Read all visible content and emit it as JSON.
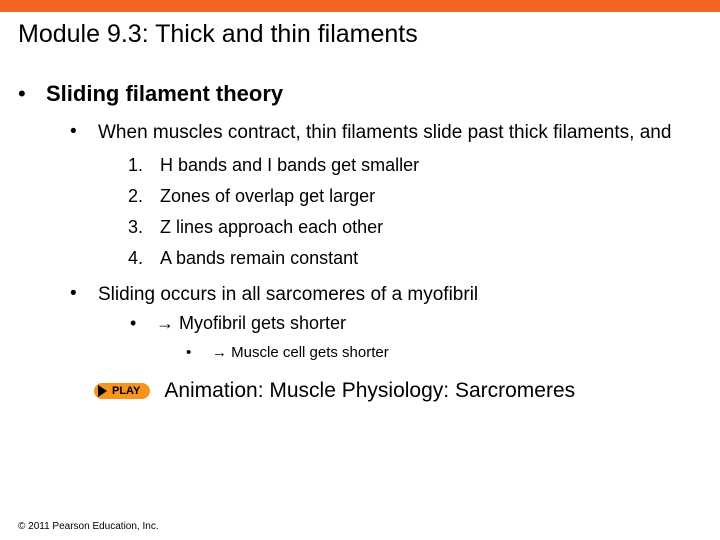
{
  "colors": {
    "accent_orange": "#f26522",
    "play_bg": "#f7941e",
    "text": "#000000",
    "bg": "#ffffff"
  },
  "title": "Module 9.3: Thick and thin filaments",
  "lvl1": {
    "theory": "Sliding filament theory"
  },
  "lvl2": {
    "when": "When muscles contract, thin filaments slide past thick filaments, and",
    "all": "Sliding occurs in all sarcomeres of a myofibril"
  },
  "numbered": {
    "1": "H bands and I bands get smaller",
    "2": "Zones of overlap get larger",
    "3": "Z lines approach each other",
    "4": "A bands remain constant"
  },
  "lvl3": {
    "myofibril": "→ Myofibril gets shorter"
  },
  "lvl4": {
    "cell": "→ Muscle cell gets shorter"
  },
  "play": {
    "label": "PLAY",
    "animation": "Animation: Muscle Physiology: Sarcromeres"
  },
  "copyright": "© 2011 Pearson Education, Inc."
}
